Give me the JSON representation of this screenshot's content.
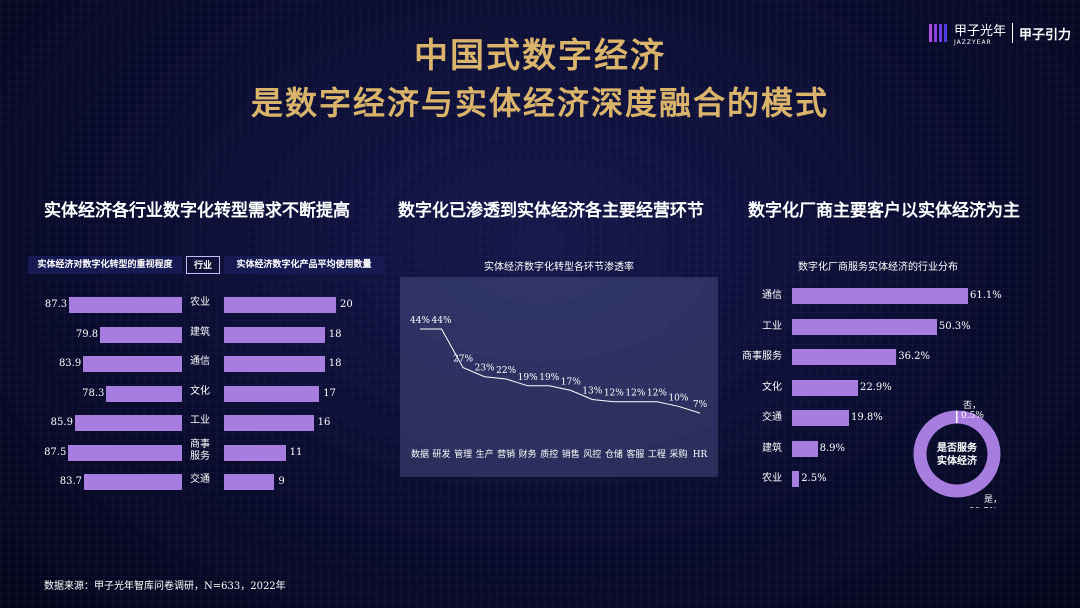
{
  "header": {
    "title_line1": "中国式数字经济",
    "title_line2": "是数字经济与实体经济深度融合的模式",
    "logo_text": "甲子光年",
    "logo_sub": "JAZZYEAR",
    "logo_right": "甲子引力"
  },
  "left": {
    "section_title": "实体经济各行业数字化转型需求不断提高",
    "col_left": "实体经济对数字化转型的重视程度",
    "col_mid": "行业",
    "col_right": "实体经济数字化产品平均使用数量"
  },
  "middle": {
    "section_title": "数字化已渗透到实体经济各主要经营环节",
    "chart_title": "实体经济数字化转型各环节渗透率"
  },
  "right": {
    "section_title": "数字化厂商主要客户以实体经济为主",
    "chart_title": "数字化厂商服务实体经济的行业分布",
    "donut_center": "是否服务实体经济",
    "donut_center_l1": "是否服务",
    "donut_center_l2": "实体经济"
  },
  "footer": {
    "source": "数据来源：甲子光年智库问卷调研，N=633，2022年"
  },
  "chart_data": [
    {
      "type": "bar",
      "title": "实体经济对数字化转型的重视程度",
      "categories": [
        "农业",
        "建筑",
        "通信",
        "文化",
        "工业",
        "商事服务",
        "交通"
      ],
      "values": [
        87.3,
        79.8,
        83.9,
        78.3,
        85.9,
        87.5,
        83.7
      ],
      "value_labels": [
        "87.3",
        "79.8",
        "83.9",
        "78.3",
        "85.9",
        "87.5",
        "83.7"
      ],
      "category_labels": [
        "农业",
        "建筑",
        "通信",
        "文化",
        "工业",
        "商事\n服务",
        "交通"
      ],
      "xlim": [
        60,
        90
      ]
    },
    {
      "type": "bar",
      "title": "实体经济数字化产品平均使用数量",
      "categories": [
        "农业",
        "建筑",
        "通信",
        "文化",
        "工业",
        "商事服务",
        "交通"
      ],
      "values": [
        20,
        18,
        18,
        17,
        16,
        11,
        9
      ],
      "value_labels": [
        "20",
        "18",
        "18",
        "17",
        "16",
        "11",
        "9"
      ],
      "xlim": [
        0,
        20
      ]
    },
    {
      "type": "line",
      "title": "实体经济数字化转型各环节渗透率",
      "categories": [
        "数据",
        "研发",
        "管理",
        "生产",
        "营销",
        "财务",
        "质控",
        "销售",
        "风控",
        "仓储",
        "客服",
        "工程",
        "采购",
        "HR"
      ],
      "values": [
        44,
        44,
        27,
        23,
        22,
        19,
        19,
        17,
        13,
        12,
        12,
        12,
        10,
        7
      ],
      "value_labels": [
        "44%",
        "44%",
        "27%",
        "23%",
        "22%",
        "19%",
        "19%",
        "17%",
        "13%",
        "12%",
        "12%",
        "12%",
        "10%",
        "7%"
      ],
      "ylim": [
        0,
        50
      ]
    },
    {
      "type": "bar",
      "title": "数字化厂商服务实体经济的行业分布",
      "categories": [
        "通信",
        "工业",
        "商事服务",
        "文化",
        "交通",
        "建筑",
        "农业"
      ],
      "values": [
        61.1,
        50.3,
        36.2,
        22.9,
        19.8,
        8.9,
        2.5
      ],
      "value_labels": [
        "61.1%",
        "50.3%",
        "36.2%",
        "22.9%",
        "19.8%",
        "8.9%",
        "2.5%"
      ],
      "xlim": [
        0,
        61.1
      ]
    },
    {
      "type": "pie",
      "title": "是否服务实体经济",
      "categories": [
        "是",
        "否"
      ],
      "values": [
        99.5,
        0.5
      ],
      "value_labels": [
        "99.5%",
        "0.5%"
      ],
      "category_labels": [
        "是，",
        "否，"
      ]
    }
  ],
  "colors": {
    "bar": "#a77ee0",
    "title_gold": "#d9b46a",
    "header_bg": "#171a52"
  }
}
